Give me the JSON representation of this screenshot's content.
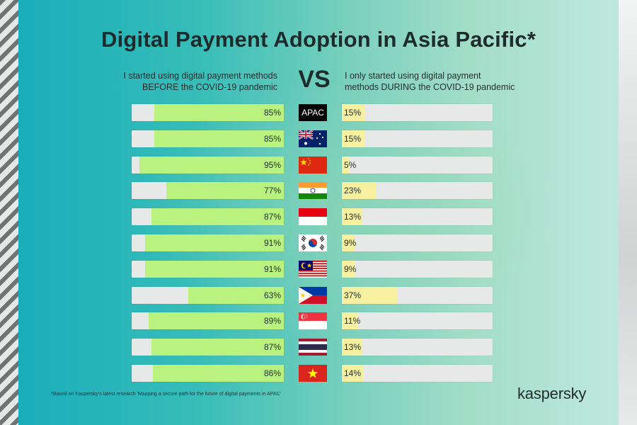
{
  "title": "Digital Payment Adoption in Asia Pacific*",
  "headers": {
    "left_line1": "I started using digital payment methods",
    "left_line2": "BEFORE the COVID-19 pandemic",
    "vs": "VS",
    "right_line1": "I only started using digital payment",
    "right_line2": "methods DURING the COVID-19 pandemic"
  },
  "colors": {
    "before_fill": "#b9f27f",
    "during_fill": "#f7f0a0",
    "bar_track": "#e7e8e8"
  },
  "chart_data": {
    "type": "bar",
    "orientation": "horizontal-diverging",
    "title": "Digital Payment Adoption in Asia Pacific*",
    "categories": [
      "APAC",
      "Australia",
      "China",
      "India",
      "Indonesia",
      "South Korea",
      "Malaysia",
      "Philippines",
      "Singapore",
      "Thailand",
      "Vietnam"
    ],
    "series": [
      {
        "name": "I started using digital payment methods BEFORE the COVID-19 pandemic",
        "values": [
          85,
          85,
          95,
          77,
          87,
          91,
          91,
          63,
          89,
          87,
          86
        ],
        "labels": [
          "85%",
          "85%",
          "95%",
          "77%",
          "87%",
          "91%",
          "91%",
          "63%",
          "89%",
          "87%",
          "86%"
        ]
      },
      {
        "name": "I only started using digital payment methods DURING the COVID-19 pandemic",
        "values": [
          15,
          15,
          5,
          23,
          13,
          9,
          9,
          37,
          11,
          13,
          14
        ],
        "labels": [
          "15%",
          "15%",
          "5%",
          "23%",
          "13%",
          "9%",
          "9%",
          "37%",
          "11%",
          "13%",
          "14%"
        ]
      }
    ],
    "row_markers": [
      {
        "type": "text",
        "text": "APAC"
      },
      {
        "type": "flag",
        "icon": "australia-flag-icon"
      },
      {
        "type": "flag",
        "icon": "china-flag-icon"
      },
      {
        "type": "flag",
        "icon": "india-flag-icon"
      },
      {
        "type": "flag",
        "icon": "indonesia-flag-icon"
      },
      {
        "type": "flag",
        "icon": "south-korea-flag-icon"
      },
      {
        "type": "flag",
        "icon": "malaysia-flag-icon"
      },
      {
        "type": "flag",
        "icon": "philippines-flag-icon"
      },
      {
        "type": "flag",
        "icon": "singapore-flag-icon"
      },
      {
        "type": "flag",
        "icon": "thailand-flag-icon"
      },
      {
        "type": "flag",
        "icon": "vietnam-flag-icon"
      }
    ],
    "xlim": [
      0,
      100
    ]
  },
  "footnote": "*Based on Kaspersky's latest research 'Mapping a secure path for the future of digital payments in APAC'",
  "brand": "kaspersky"
}
